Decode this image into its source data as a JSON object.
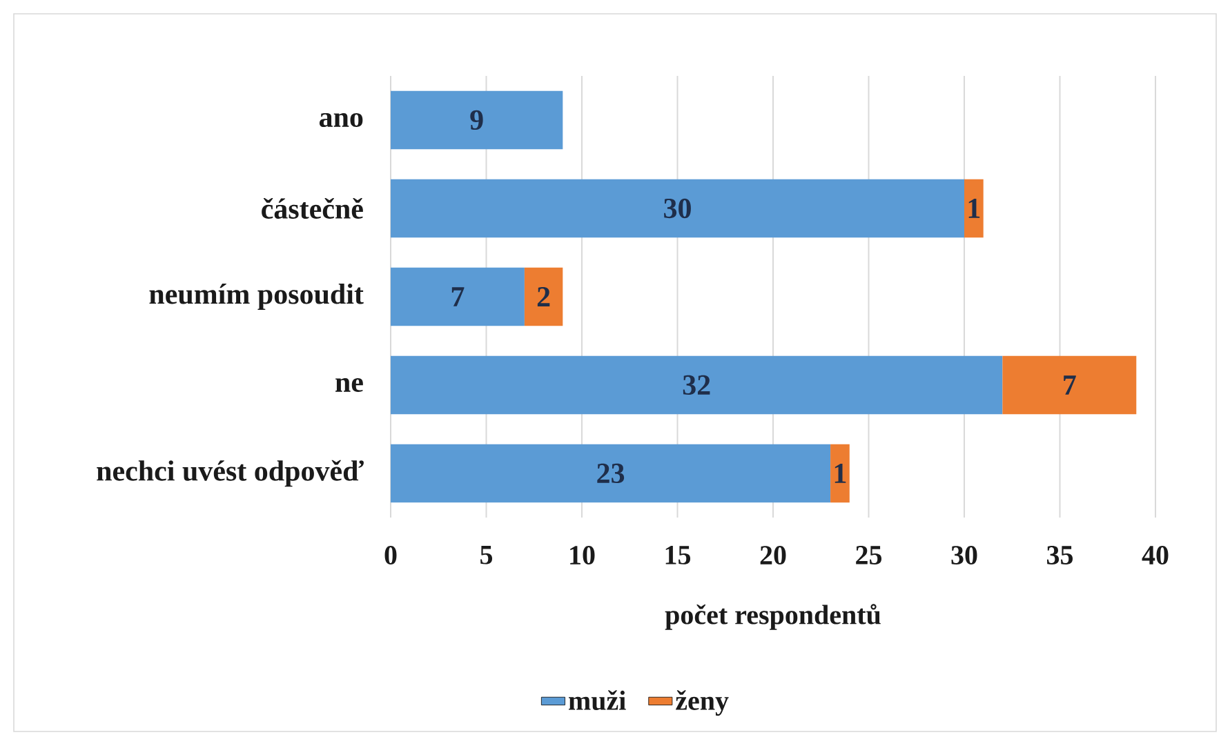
{
  "chart_data": {
    "type": "bar",
    "orientation": "horizontal",
    "stacked": true,
    "categories": [
      "ano",
      "částečně",
      "neumím posoudit",
      "ne",
      "nechci uvést odpověď"
    ],
    "series": [
      {
        "name": "muži",
        "color": "#5b9bd5",
        "values": [
          9,
          30,
          7,
          32,
          23
        ]
      },
      {
        "name": "ženy",
        "color": "#ed7d31",
        "values": [
          null,
          1,
          2,
          7,
          1
        ]
      }
    ],
    "xlabel": "počet respondentů",
    "xlim": [
      0,
      40
    ],
    "xticks": [
      0,
      5,
      10,
      15,
      20,
      25,
      30,
      35,
      40
    ],
    "grid": "x",
    "legend": "bottom",
    "data_labels": true
  }
}
